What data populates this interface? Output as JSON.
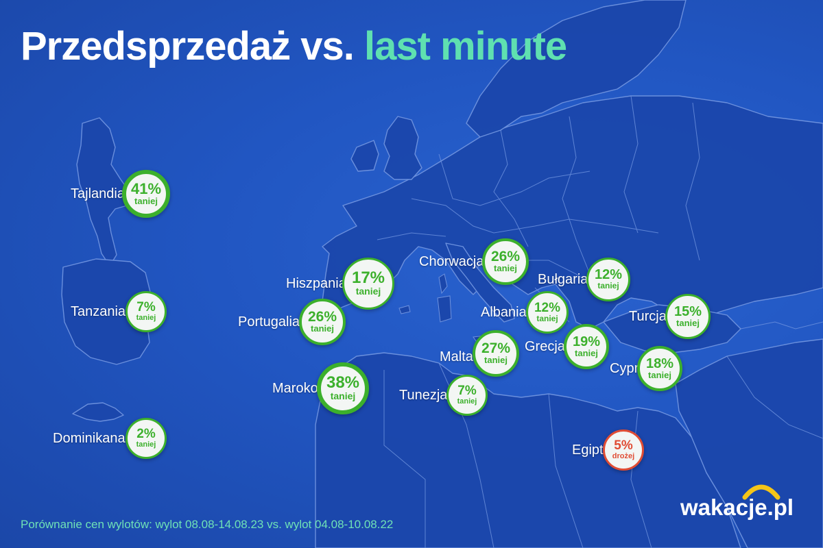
{
  "title": {
    "main": "Przedsprzedaż vs.",
    "accent": "last minute"
  },
  "colors": {
    "cheaper": "#3cb02c",
    "more_expensive": "#e04c34",
    "accent": "#5fe0b0",
    "logo_arc": "#f5c518"
  },
  "countries": [
    {
      "name": "Tajlandia",
      "percent": "41%",
      "status": "taniej",
      "trend": "cheaper"
    },
    {
      "name": "Tanzania",
      "percent": "7%",
      "status": "taniej",
      "trend": "cheaper"
    },
    {
      "name": "Dominikana",
      "percent": "2%",
      "status": "taniej",
      "trend": "cheaper"
    },
    {
      "name": "Hiszpania",
      "percent": "17%",
      "status": "taniej",
      "trend": "cheaper"
    },
    {
      "name": "Portugalia",
      "percent": "26%",
      "status": "taniej",
      "trend": "cheaper"
    },
    {
      "name": "Maroko",
      "percent": "38%",
      "status": "taniej",
      "trend": "cheaper"
    },
    {
      "name": "Chorwacja",
      "percent": "26%",
      "status": "taniej",
      "trend": "cheaper"
    },
    {
      "name": "Bułgaria",
      "percent": "12%",
      "status": "taniej",
      "trend": "cheaper"
    },
    {
      "name": "Albania",
      "percent": "12%",
      "status": "taniej",
      "trend": "cheaper"
    },
    {
      "name": "Turcja",
      "percent": "15%",
      "status": "taniej",
      "trend": "cheaper"
    },
    {
      "name": "Malta",
      "percent": "27%",
      "status": "taniej",
      "trend": "cheaper"
    },
    {
      "name": "Grecja",
      "percent": "19%",
      "status": "taniej",
      "trend": "cheaper"
    },
    {
      "name": "Tunezja",
      "percent": "7%",
      "status": "taniej",
      "trend": "cheaper"
    },
    {
      "name": "Cypr",
      "percent": "18%",
      "status": "taniej",
      "trend": "cheaper"
    },
    {
      "name": "Egipt",
      "percent": "5%",
      "status": "drożej",
      "trend": "more_expensive"
    }
  ],
  "footer": "Porównanie cen wylotów: wylot 08.08-14.08.23 vs. wylot 04.08-10.08.22",
  "logo": "wakacje.pl"
}
